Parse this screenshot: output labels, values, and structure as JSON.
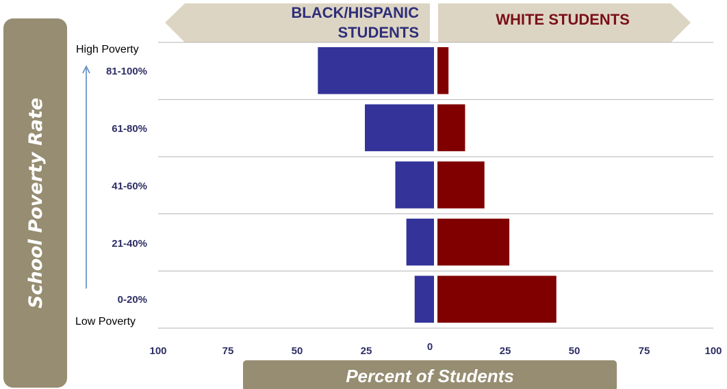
{
  "colors": {
    "left_series": "#333399",
    "right_series": "#800000",
    "panel": "#968d72",
    "banner": "#ddd5c3",
    "left_header_text": "#2e2e7a",
    "right_header_text": "#7a1018",
    "tick_text": "#2e2e66",
    "category_text": "#2e2e66",
    "grid": "#b3b3b3",
    "arrow": "#4f81bd"
  },
  "header": {
    "left_line1": "BLACK/HISPANIC",
    "left_line2": "STUDENTS",
    "right": "WHITE STUDENTS"
  },
  "y_axis_label": "School Poverty Rate",
  "x_axis_label": "Percent of Students",
  "poverty_labels": {
    "high": "High Poverty",
    "low": "Low Poverty"
  },
  "chart_data": {
    "type": "bar",
    "orientation": "horizontal",
    "layout": "diverging",
    "categories": [
      "81-100%",
      "61-80%",
      "41-60%",
      "21-40%",
      "0-20%"
    ],
    "series": [
      {
        "name": "BLACK/HISPANIC STUDENTS",
        "side": "left",
        "values": [
          42,
          25,
          14,
          10,
          7
        ]
      },
      {
        "name": "WHITE STUDENTS",
        "side": "right",
        "values": [
          4,
          10,
          17,
          26,
          43
        ]
      }
    ],
    "xlim": [
      0,
      100
    ],
    "x_ticks": [
      "100",
      "75",
      "50",
      "25",
      "0",
      "25",
      "50",
      "75",
      "100"
    ],
    "xlabel": "Percent of Students",
    "ylabel": "School Poverty Rate",
    "grid": "horizontal separators"
  }
}
